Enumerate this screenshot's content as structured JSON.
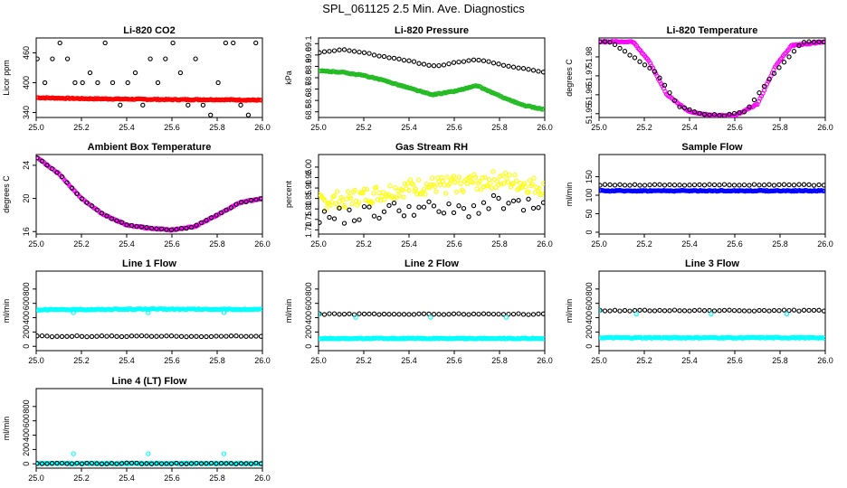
{
  "title": "SPL_061125  2.5 Min. Ave. Diagnostics",
  "colors": {
    "black": "#000000",
    "red": "#ff0000",
    "green": "#22bb22",
    "magenta": "#ff00ff",
    "yellow": "#ffff00",
    "blue": "#0000ff",
    "cyan": "#00ffff"
  },
  "chart_data": [
    {
      "type": "scatter",
      "title": "Li-820 CO2",
      "ylabel": "Licor ppm",
      "xlim": [
        25.0,
        26.0
      ],
      "ylim": [
        330,
        490
      ],
      "xticks": [
        "25.0",
        "25.2",
        "25.4",
        "25.6",
        "25.8",
        "26.0"
      ],
      "yticks": [
        "340",
        "400",
        "460"
      ],
      "ytick_values": [
        340,
        400,
        460
      ],
      "series": [
        {
          "color": "red",
          "style": "dense",
          "values": [
            {
              "x": 25.0,
              "y": 370
            },
            {
              "x": 25.2,
              "y": 368
            },
            {
              "x": 25.4,
              "y": 367
            },
            {
              "x": 25.6,
              "y": 366
            },
            {
              "x": 25.8,
              "y": 366
            },
            {
              "x": 25.98,
              "y": 365
            }
          ]
        },
        {
          "color": "black",
          "style": "discrete",
          "levels": [
            335,
            355,
            400,
            420,
            448,
            480
          ],
          "period": 0.0333
        }
      ]
    },
    {
      "type": "scatter",
      "title": "Li-820 Pressure",
      "ylabel": "kPa",
      "xlim": [
        25.0,
        26.0
      ],
      "ylim": [
        68.45,
        69.15
      ],
      "xticks": [
        "25.0",
        "25.2",
        "25.4",
        "25.6",
        "25.8",
        "26.0"
      ],
      "yticks": [
        "68.5",
        "68.6",
        "68.7",
        "68.8",
        "68.9",
        "69.0",
        "69.1"
      ],
      "ytick_values": [
        68.5,
        68.6,
        68.7,
        68.8,
        68.9,
        69.0,
        69.1
      ],
      "series": [
        {
          "color": "black",
          "style": "sparse",
          "values": [
            {
              "x": 25.0,
              "y": 69.02
            },
            {
              "x": 25.1,
              "y": 69.05
            },
            {
              "x": 25.2,
              "y": 69.02
            },
            {
              "x": 25.3,
              "y": 68.98
            },
            {
              "x": 25.4,
              "y": 68.95
            },
            {
              "x": 25.5,
              "y": 68.9
            },
            {
              "x": 25.6,
              "y": 68.93
            },
            {
              "x": 25.7,
              "y": 68.96
            },
            {
              "x": 25.8,
              "y": 68.92
            },
            {
              "x": 25.9,
              "y": 68.88
            },
            {
              "x": 26.0,
              "y": 68.85
            }
          ]
        },
        {
          "color": "green",
          "style": "dense",
          "values": [
            {
              "x": 25.0,
              "y": 68.86
            },
            {
              "x": 25.1,
              "y": 68.85
            },
            {
              "x": 25.2,
              "y": 68.82
            },
            {
              "x": 25.3,
              "y": 68.77
            },
            {
              "x": 25.4,
              "y": 68.71
            },
            {
              "x": 25.5,
              "y": 68.65
            },
            {
              "x": 25.6,
              "y": 68.68
            },
            {
              "x": 25.7,
              "y": 68.73
            },
            {
              "x": 25.8,
              "y": 68.64
            },
            {
              "x": 25.9,
              "y": 68.56
            },
            {
              "x": 26.0,
              "y": 68.52
            }
          ]
        }
      ]
    },
    {
      "type": "scatter",
      "title": "Li-820 Temperature",
      "ylabel": "degrees C",
      "xlim": [
        25.0,
        26.0
      ],
      "ylim": [
        51.948,
        51.99
      ],
      "xticks": [
        "25.0",
        "25.2",
        "25.4",
        "25.6",
        "25.8",
        "26.0"
      ],
      "yticks": [
        "51.95",
        "51.96",
        "51.97",
        "51.98"
      ],
      "ytick_values": [
        51.95,
        51.96,
        51.97,
        51.98
      ],
      "series": [
        {
          "color": "magenta",
          "style": "dense",
          "values": [
            {
              "x": 25.0,
              "y": 51.988
            },
            {
              "x": 25.15,
              "y": 51.988
            },
            {
              "x": 25.22,
              "y": 51.978
            },
            {
              "x": 25.3,
              "y": 51.96
            },
            {
              "x": 25.4,
              "y": 51.951
            },
            {
              "x": 25.5,
              "y": 51.949
            },
            {
              "x": 25.6,
              "y": 51.949
            },
            {
              "x": 25.7,
              "y": 51.955
            },
            {
              "x": 25.78,
              "y": 51.975
            },
            {
              "x": 25.85,
              "y": 51.986
            },
            {
              "x": 26.0,
              "y": 51.988
            }
          ]
        },
        {
          "color": "black",
          "style": "sparse",
          "values": [
            {
              "x": 25.05,
              "y": 51.988
            },
            {
              "x": 25.25,
              "y": 51.972
            },
            {
              "x": 25.35,
              "y": 51.954
            },
            {
              "x": 25.45,
              "y": 51.95
            },
            {
              "x": 25.55,
              "y": 51.949
            },
            {
              "x": 25.65,
              "y": 51.951
            },
            {
              "x": 25.75,
              "y": 51.968
            },
            {
              "x": 25.9,
              "y": 51.988
            }
          ]
        }
      ]
    },
    {
      "type": "scatter",
      "title": "Ambient Box Temperature",
      "ylabel": "degrees C",
      "xlim": [
        25.0,
        26.0
      ],
      "ylim": [
        15.7,
        25.3
      ],
      "xticks": [
        "25.0",
        "25.2",
        "25.4",
        "25.6",
        "25.8",
        "26.0"
      ],
      "yticks": [
        "16",
        "20",
        "24"
      ],
      "ytick_values": [
        16,
        20,
        24
      ],
      "series": [
        {
          "color": "magenta",
          "style": "dense",
          "values": [
            {
              "x": 25.0,
              "y": 25.0
            },
            {
              "x": 25.1,
              "y": 23.0
            },
            {
              "x": 25.2,
              "y": 20.0
            },
            {
              "x": 25.3,
              "y": 18.0
            },
            {
              "x": 25.4,
              "y": 16.8
            },
            {
              "x": 25.5,
              "y": 16.4
            },
            {
              "x": 25.6,
              "y": 16.2
            },
            {
              "x": 25.7,
              "y": 16.6
            },
            {
              "x": 25.8,
              "y": 18.0
            },
            {
              "x": 25.9,
              "y": 19.5
            },
            {
              "x": 26.0,
              "y": 20.0
            }
          ]
        },
        {
          "color": "black",
          "style": "sparse",
          "values": [
            {
              "x": 25.0,
              "y": 25.0
            },
            {
              "x": 25.1,
              "y": 23.0
            },
            {
              "x": 25.2,
              "y": 20.0
            },
            {
              "x": 25.3,
              "y": 18.0
            },
            {
              "x": 25.4,
              "y": 16.8
            },
            {
              "x": 25.5,
              "y": 16.4
            },
            {
              "x": 25.6,
              "y": 16.2
            },
            {
              "x": 25.7,
              "y": 16.6
            },
            {
              "x": 25.8,
              "y": 18.0
            },
            {
              "x": 25.9,
              "y": 19.5
            },
            {
              "x": 26.0,
              "y": 20.0
            }
          ]
        }
      ]
    },
    {
      "type": "scatter",
      "title": "Gas Stream RH",
      "ylabel": "percent",
      "xlim": [
        25.0,
        26.0
      ],
      "ylim": [
        1.68,
        2.06
      ],
      "xticks": [
        "25.0",
        "25.2",
        "25.4",
        "25.6",
        "25.8",
        "26.0"
      ],
      "yticks": [
        "1.70",
        "1.75",
        "1.80",
        "1.85",
        "1.90",
        "1.95",
        "2.00"
      ],
      "ytick_values": [
        1.7,
        1.75,
        1.8,
        1.85,
        1.9,
        1.95,
        2.0
      ],
      "series": [
        {
          "color": "yellow",
          "style": "dense-noisy",
          "values": [
            {
              "x": 25.0,
              "y": 1.83
            },
            {
              "x": 25.2,
              "y": 1.86
            },
            {
              "x": 25.4,
              "y": 1.9
            },
            {
              "x": 25.6,
              "y": 1.92
            },
            {
              "x": 25.8,
              "y": 1.94
            },
            {
              "x": 26.0,
              "y": 1.9
            }
          ]
        },
        {
          "color": "black",
          "style": "sparse-noisy",
          "values": [
            {
              "x": 25.0,
              "y": 1.76
            },
            {
              "x": 25.2,
              "y": 1.78
            },
            {
              "x": 25.4,
              "y": 1.81
            },
            {
              "x": 25.6,
              "y": 1.79
            },
            {
              "x": 25.8,
              "y": 1.83
            },
            {
              "x": 26.0,
              "y": 1.8
            }
          ]
        }
      ]
    },
    {
      "type": "scatter",
      "title": "Sample Flow",
      "ylabel": "ml/min",
      "xlim": [
        25.0,
        26.0
      ],
      "ylim": [
        -5,
        210
      ],
      "xticks": [
        "25.0",
        "25.2",
        "25.4",
        "25.6",
        "25.8",
        "26.0"
      ],
      "yticks": [
        "0",
        "50",
        "100",
        "150"
      ],
      "ytick_values": [
        0,
        50,
        100,
        150
      ],
      "series": [
        {
          "color": "blue",
          "style": "dense",
          "values": [
            {
              "x": 25.0,
              "y": 112
            },
            {
              "x": 26.0,
              "y": 112
            }
          ]
        },
        {
          "color": "black",
          "style": "sparse",
          "values": [
            {
              "x": 25.0,
              "y": 128
            },
            {
              "x": 26.0,
              "y": 128
            }
          ]
        }
      ]
    },
    {
      "type": "scatter",
      "title": "Line 1 Flow",
      "ylabel": "ml/min",
      "xlim": [
        25.0,
        26.0
      ],
      "ylim": [
        -60,
        1050
      ],
      "xticks": [
        "25.0",
        "25.2",
        "25.4",
        "25.6",
        "25.8",
        "26.0"
      ],
      "yticks": [
        "0",
        "200",
        "400",
        "600",
        "800"
      ],
      "ytick_values": [
        0,
        200,
        400,
        600,
        800
      ],
      "series": [
        {
          "color": "cyan",
          "style": "dense",
          "values": [
            {
              "x": 25.0,
              "y": 510
            },
            {
              "x": 25.5,
              "y": 520
            },
            {
              "x": 26.0,
              "y": 515
            }
          ]
        },
        {
          "color": "black",
          "style": "sparse",
          "values": [
            {
              "x": 25.0,
              "y": 140
            },
            {
              "x": 26.0,
              "y": 140
            }
          ]
        },
        {
          "color": "cyan",
          "style": "points",
          "values": [
            {
              "x": 25.165,
              "y": 470
            },
            {
              "x": 25.495,
              "y": 470
            },
            {
              "x": 25.83,
              "y": 470
            }
          ]
        }
      ]
    },
    {
      "type": "scatter",
      "title": "Line 2 Flow",
      "ylabel": "ml/min",
      "xlim": [
        25.0,
        26.0
      ],
      "ylim": [
        -60,
        1050
      ],
      "xticks": [
        "25.0",
        "25.2",
        "25.4",
        "25.6",
        "25.8",
        "26.0"
      ],
      "yticks": [
        "0",
        "200",
        "400",
        "600",
        "800"
      ],
      "ytick_values": [
        0,
        200,
        400,
        600,
        800
      ],
      "series": [
        {
          "color": "cyan",
          "style": "dense",
          "values": [
            {
              "x": 25.0,
              "y": 110
            },
            {
              "x": 26.0,
              "y": 110
            }
          ]
        },
        {
          "color": "black",
          "style": "sparse",
          "values": [
            {
              "x": 25.0,
              "y": 450
            },
            {
              "x": 26.0,
              "y": 450
            }
          ]
        },
        {
          "color": "cyan",
          "style": "points",
          "values": [
            {
              "x": 25.0,
              "y": 450
            },
            {
              "x": 25.165,
              "y": 405
            },
            {
              "x": 25.495,
              "y": 405
            },
            {
              "x": 25.83,
              "y": 405
            }
          ]
        }
      ]
    },
    {
      "type": "scatter",
      "title": "Line 3 Flow",
      "ylabel": "ml/min",
      "xlim": [
        25.0,
        26.0
      ],
      "ylim": [
        -60,
        1050
      ],
      "xticks": [
        "25.0",
        "25.2",
        "25.4",
        "25.6",
        "25.8",
        "26.0"
      ],
      "yticks": [
        "0",
        "200",
        "400",
        "600",
        "800"
      ],
      "ytick_values": [
        0,
        200,
        400,
        600,
        800
      ],
      "series": [
        {
          "color": "cyan",
          "style": "dense",
          "values": [
            {
              "x": 25.0,
              "y": 120
            },
            {
              "x": 26.0,
              "y": 120
            }
          ]
        },
        {
          "color": "black",
          "style": "sparse",
          "values": [
            {
              "x": 25.0,
              "y": 500
            },
            {
              "x": 26.0,
              "y": 500
            }
          ]
        },
        {
          "color": "cyan",
          "style": "points",
          "values": [
            {
              "x": 25.0,
              "y": 500
            },
            {
              "x": 25.165,
              "y": 450
            },
            {
              "x": 25.495,
              "y": 450
            },
            {
              "x": 25.83,
              "y": 450
            }
          ]
        }
      ]
    },
    {
      "type": "scatter",
      "title": "Line 4 (LT) Flow",
      "ylabel": "ml/min",
      "xlim": [
        25.0,
        26.0
      ],
      "ylim": [
        -60,
        1050
      ],
      "xticks": [
        "25.0",
        "25.2",
        "25.4",
        "25.6",
        "25.8",
        "26.0"
      ],
      "yticks": [
        "0",
        "200",
        "400",
        "600",
        "800"
      ],
      "ytick_values": [
        0,
        200,
        400,
        600,
        800
      ],
      "series": [
        {
          "color": "cyan",
          "style": "dense",
          "values": [
            {
              "x": 25.0,
              "y": 5
            },
            {
              "x": 26.0,
              "y": 5
            }
          ]
        },
        {
          "color": "black",
          "style": "sparse",
          "values": [
            {
              "x": 25.0,
              "y": 5
            },
            {
              "x": 26.0,
              "y": 5
            }
          ]
        },
        {
          "color": "cyan",
          "style": "points",
          "values": [
            {
              "x": 25.165,
              "y": 140
            },
            {
              "x": 25.495,
              "y": 140
            },
            {
              "x": 25.83,
              "y": 140
            }
          ]
        }
      ]
    }
  ]
}
